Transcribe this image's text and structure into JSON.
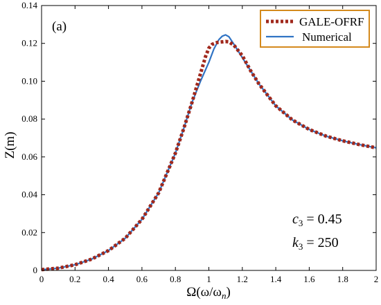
{
  "chart_data": {
    "type": "line",
    "panel_label": "(a)",
    "xlabel": {
      "main": "Ω(ω/ω",
      "sub": "n",
      "close": ")"
    },
    "ylabel": "Z(m)",
    "xlim": [
      0,
      2
    ],
    "ylim": [
      0,
      0.14
    ],
    "xticks": [
      "0",
      "0.2",
      "0.4",
      "0.6",
      "0.8",
      "1",
      "1.2",
      "1.4",
      "1.6",
      "1.8",
      "2"
    ],
    "yticks": [
      "0",
      "0.02",
      "0.04",
      "0.06",
      "0.08",
      "0.10",
      "0.12",
      "0.14"
    ],
    "grid": false,
    "legend_position": "top-right",
    "legend_border_color": "#d4891c",
    "series": [
      {
        "name": "GALE-OFRF",
        "color": "#a0281c",
        "style": "dotted",
        "x": [
          0,
          0.1,
          0.2,
          0.3,
          0.4,
          0.5,
          0.6,
          0.7,
          0.8,
          0.85,
          0.9,
          0.95,
          0.98,
          1.0,
          1.02,
          1.05,
          1.08,
          1.1,
          1.12,
          1.15,
          1.2,
          1.25,
          1.3,
          1.4,
          1.5,
          1.6,
          1.7,
          1.8,
          1.9,
          2.0
        ],
        "y": [
          0.0004,
          0.0012,
          0.003,
          0.006,
          0.0105,
          0.017,
          0.027,
          0.041,
          0.062,
          0.075,
          0.089,
          0.104,
          0.113,
          0.1175,
          0.1195,
          0.1205,
          0.1208,
          0.121,
          0.1208,
          0.119,
          0.1135,
          0.1055,
          0.0985,
          0.087,
          0.0795,
          0.0745,
          0.071,
          0.0685,
          0.0665,
          0.0648
        ]
      },
      {
        "name": "Numerical",
        "color": "#2f73c4",
        "style": "solid",
        "x": [
          0,
          0.1,
          0.2,
          0.3,
          0.4,
          0.5,
          0.6,
          0.7,
          0.8,
          0.85,
          0.9,
          0.95,
          1.0,
          1.03,
          1.06,
          1.08,
          1.1,
          1.12,
          1.15,
          1.2,
          1.25,
          1.3,
          1.4,
          1.5,
          1.6,
          1.7,
          1.8,
          1.9,
          2.0
        ],
        "y": [
          0.0004,
          0.0012,
          0.003,
          0.006,
          0.0105,
          0.017,
          0.027,
          0.041,
          0.062,
          0.075,
          0.089,
          0.1,
          0.11,
          0.117,
          0.122,
          0.1238,
          0.1245,
          0.1235,
          0.1195,
          0.1125,
          0.1055,
          0.0985,
          0.087,
          0.0795,
          0.0745,
          0.071,
          0.0685,
          0.0665,
          0.0648
        ]
      }
    ],
    "annotations": [
      {
        "symbol": "c",
        "sub": "3",
        "value": " = 0.45"
      },
      {
        "symbol": "k",
        "sub": "3",
        "value": " = 250"
      }
    ]
  }
}
